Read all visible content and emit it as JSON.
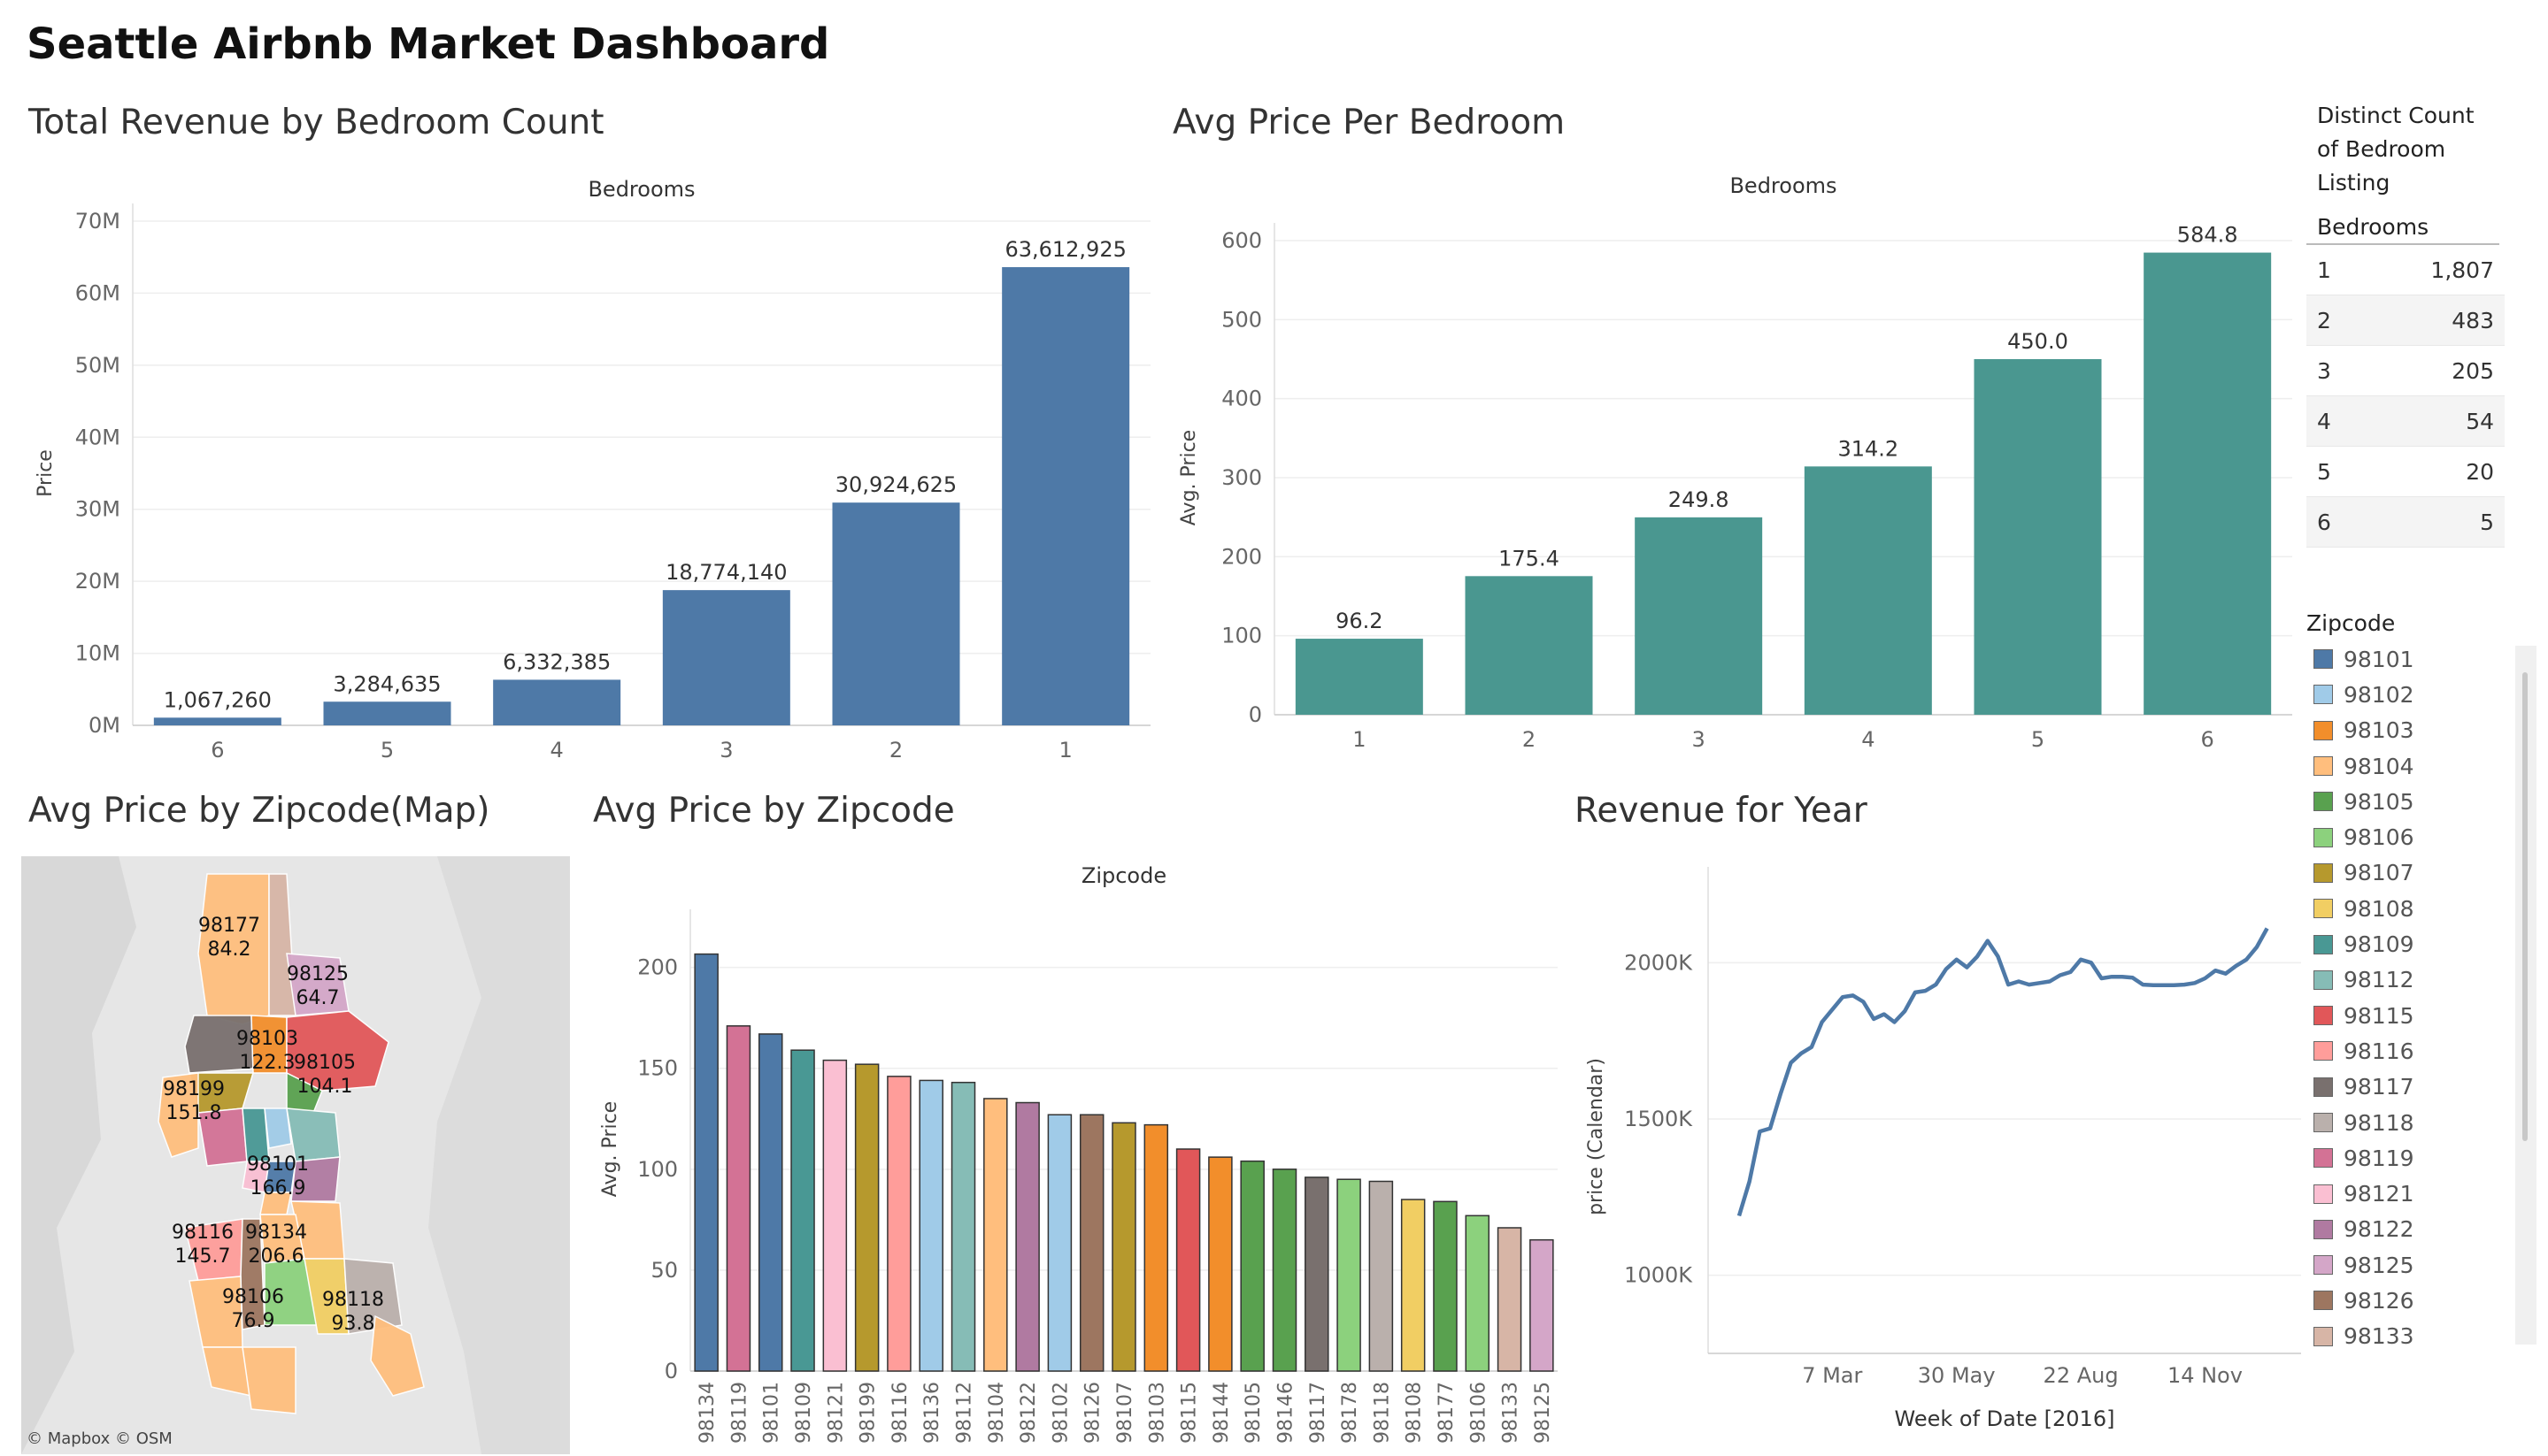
{
  "dashboard_title": "Seattle Airbnb Market Dashboard",
  "panels": {
    "revenue_by_bedroom": "Total Revenue by Bedroom Count",
    "avg_price_per_bedroom": "Avg Price Per Bedroom",
    "map": "Avg Price by Zipcode(Map)",
    "avg_price_by_zip": "Avg Price by Zipcode",
    "revenue_for_year": "Revenue for Year"
  },
  "table": {
    "title": "Distinct Count of Bedroom Listing",
    "title_lines": [
      "Distinct Count",
      "of Bedroom",
      "Listing"
    ],
    "column_header": "Bedrooms",
    "rows": [
      {
        "bedrooms": "1",
        "count": "1,807"
      },
      {
        "bedrooms": "2",
        "count": "483"
      },
      {
        "bedrooms": "3",
        "count": "205"
      },
      {
        "bedrooms": "4",
        "count": "54"
      },
      {
        "bedrooms": "5",
        "count": "20"
      },
      {
        "bedrooms": "6",
        "count": "5"
      }
    ]
  },
  "legend": {
    "title": "Zipcode",
    "items": [
      {
        "label": "98101",
        "color": "#4e79a7"
      },
      {
        "label": "98102",
        "color": "#a0cbe8"
      },
      {
        "label": "98103",
        "color": "#f28e2b"
      },
      {
        "label": "98104",
        "color": "#ffbe7d"
      },
      {
        "label": "98105",
        "color": "#59a14f"
      },
      {
        "label": "98106",
        "color": "#8cd17d"
      },
      {
        "label": "98107",
        "color": "#b6992d"
      },
      {
        "label": "98108",
        "color": "#f1ce63"
      },
      {
        "label": "98109",
        "color": "#499894"
      },
      {
        "label": "98112",
        "color": "#86bcb6"
      },
      {
        "label": "98115",
        "color": "#e15759"
      },
      {
        "label": "98116",
        "color": "#ff9d9a"
      },
      {
        "label": "98117",
        "color": "#79706e"
      },
      {
        "label": "98118",
        "color": "#bab0ac"
      },
      {
        "label": "98119",
        "color": "#d37295"
      },
      {
        "label": "98121",
        "color": "#fabfd2"
      },
      {
        "label": "98122",
        "color": "#b07aa1"
      },
      {
        "label": "98125",
        "color": "#d4a6c8"
      },
      {
        "label": "98126",
        "color": "#9d7660"
      },
      {
        "label": "98133",
        "color": "#d7b5a6"
      }
    ]
  },
  "map": {
    "attribution": "© Mapbox © OSM",
    "labels": [
      {
        "zip": "98177",
        "value": "84.2"
      },
      {
        "zip": "98125",
        "value": "64.7"
      },
      {
        "zip": "98103",
        "value": "122.3"
      },
      {
        "zip": "98105",
        "value": "104.1"
      },
      {
        "zip": "98199",
        "value": "151.8"
      },
      {
        "zip": "98101",
        "value": "166.9"
      },
      {
        "zip": "98116",
        "value": "145.7"
      },
      {
        "zip": "98134",
        "value": "206.6"
      },
      {
        "zip": "98106",
        "value": "76.9"
      },
      {
        "zip": "98118",
        "value": "93.8"
      }
    ]
  },
  "chart_data": [
    {
      "type": "bar",
      "title": "Total Revenue by Bedroom Count",
      "header": "Bedrooms",
      "ylabel": "Price",
      "categories": [
        "6",
        "5",
        "4",
        "3",
        "2",
        "1"
      ],
      "values": [
        1067260,
        3284635,
        6332385,
        18774140,
        30924625,
        63612925
      ],
      "value_labels": [
        "1,067,260",
        "3,284,635",
        "6,332,385",
        "18,774,140",
        "30,924,625",
        "63,612,925"
      ],
      "ylim": [
        0,
        70000000
      ],
      "yticks": [
        0,
        10000000,
        20000000,
        30000000,
        40000000,
        50000000,
        60000000,
        70000000
      ],
      "ytick_labels": [
        "0M",
        "10M",
        "20M",
        "30M",
        "40M",
        "50M",
        "60M",
        "70M"
      ],
      "color": "#4e79a7"
    },
    {
      "type": "bar",
      "title": "Avg Price Per Bedroom",
      "header": "Bedrooms",
      "ylabel": "Avg. Price",
      "categories": [
        "1",
        "2",
        "3",
        "4",
        "5",
        "6"
      ],
      "values": [
        96.2,
        175.4,
        249.8,
        314.2,
        450.0,
        584.8
      ],
      "value_labels": [
        "96.2",
        "175.4",
        "249.8",
        "314.2",
        "450.0",
        "584.8"
      ],
      "ylim": [
        0,
        600
      ],
      "yticks": [
        0,
        100,
        200,
        300,
        400,
        500,
        600
      ],
      "ytick_labels": [
        "0",
        "100",
        "200",
        "300",
        "400",
        "500",
        "600"
      ],
      "color": "#4a9790"
    },
    {
      "type": "bar",
      "title": "Avg Price by Zipcode",
      "header": "Zipcode",
      "ylabel": "Avg. Price",
      "categories": [
        "98134",
        "98119",
        "98101",
        "98109",
        "98121",
        "98199",
        "98116",
        "98136",
        "98112",
        "98104",
        "98122",
        "98102",
        "98126",
        "98107",
        "98103",
        "98115",
        "98144",
        "98105",
        "98146",
        "98117",
        "98178",
        "98118",
        "98108",
        "98177",
        "98106",
        "98133",
        "98125"
      ],
      "values": [
        206.6,
        171,
        167,
        159,
        154,
        152,
        146,
        144,
        143,
        135,
        133,
        127,
        127,
        123,
        122,
        110,
        106,
        104,
        100,
        96,
        95,
        94,
        85,
        84,
        77,
        71,
        65
      ],
      "colors": [
        "#4e79a7",
        "#d37295",
        "#4e79a7",
        "#499894",
        "#fabfd2",
        "#b6992d",
        "#ff9d9a",
        "#a0cbe8",
        "#86bcb6",
        "#ffbe7d",
        "#b07aa1",
        "#a0cbe8",
        "#9d7660",
        "#b6992d",
        "#f28e2b",
        "#e15759",
        "#f28e2b",
        "#59a14f",
        "#59a14f",
        "#79706e",
        "#8cd17d",
        "#bab0ac",
        "#f1ce63",
        "#59a14f",
        "#8cd17d",
        "#d7b5a6",
        "#d4a6c8"
      ],
      "ylim": [
        0,
        220
      ],
      "yticks": [
        0,
        50,
        100,
        150,
        200
      ],
      "ytick_labels": [
        "0",
        "50",
        "100",
        "150",
        "200"
      ]
    },
    {
      "type": "line",
      "title": "Revenue for Year",
      "xlabel": "Week of Date [2016]",
      "ylabel": "price (Calendar)",
      "x_tick_labels": [
        "7 Mar",
        "30 May",
        "22 Aug",
        "14 Nov"
      ],
      "yticks": [
        1000000,
        1500000,
        2000000
      ],
      "ytick_labels": [
        "1000K",
        "1500K",
        "2000K"
      ],
      "ylim": [
        750000,
        2250000
      ],
      "series": [
        {
          "color": "#4e79a7",
          "x": [
            "2016-01-04",
            "2016-01-11",
            "2016-01-18",
            "2016-01-25",
            "2016-02-01",
            "2016-02-08",
            "2016-02-15",
            "2016-02-22",
            "2016-02-29",
            "2016-03-07",
            "2016-03-14",
            "2016-03-21",
            "2016-03-28",
            "2016-04-04",
            "2016-04-11",
            "2016-04-18",
            "2016-04-25",
            "2016-05-02",
            "2016-05-09",
            "2016-05-16",
            "2016-05-23",
            "2016-05-30",
            "2016-06-06",
            "2016-06-13",
            "2016-06-20",
            "2016-06-27",
            "2016-07-04",
            "2016-07-11",
            "2016-07-18",
            "2016-07-25",
            "2016-08-01",
            "2016-08-08",
            "2016-08-15",
            "2016-08-22",
            "2016-08-29",
            "2016-09-05",
            "2016-09-12",
            "2016-09-19",
            "2016-09-26",
            "2016-10-03",
            "2016-10-10",
            "2016-10-17",
            "2016-10-24",
            "2016-10-31",
            "2016-11-07",
            "2016-11-14",
            "2016-11-21",
            "2016-11-28",
            "2016-12-05",
            "2016-12-12",
            "2016-12-19",
            "2016-12-26"
          ],
          "values": [
            1190000,
            1300000,
            1460000,
            1470000,
            1580000,
            1680000,
            1710000,
            1730000,
            1810000,
            1850000,
            1890000,
            1895000,
            1875000,
            1820000,
            1835000,
            1810000,
            1845000,
            1905000,
            1910000,
            1930000,
            1980000,
            2010000,
            1985000,
            2020000,
            2070000,
            2020000,
            1930000,
            1940000,
            1930000,
            1935000,
            1940000,
            1960000,
            1970000,
            2010000,
            2000000,
            1950000,
            1955000,
            1955000,
            1952000,
            1930000,
            1928000,
            1928000,
            1928000,
            1930000,
            1935000,
            1950000,
            1975000,
            1965000,
            1990000,
            2010000,
            2050000,
            2110000
          ]
        }
      ]
    }
  ]
}
